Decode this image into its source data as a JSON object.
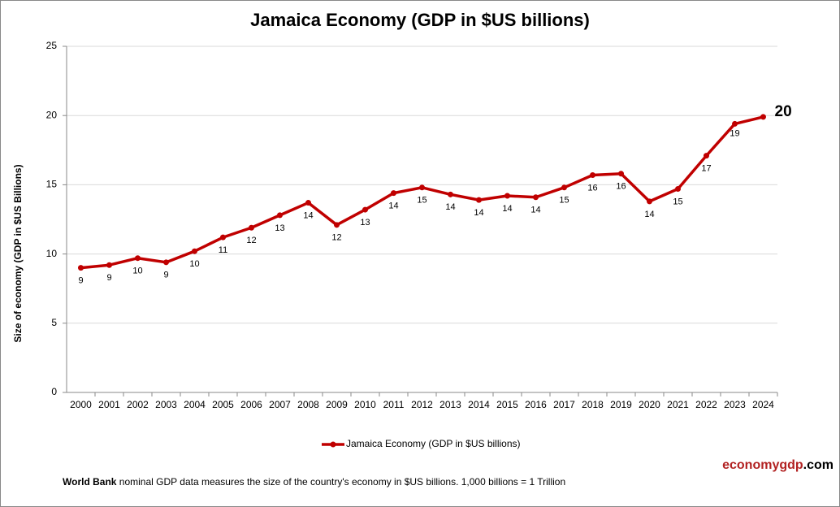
{
  "chart_data": {
    "type": "line",
    "title": "Jamaica Economy (GDP in $US billions)",
    "y_label": "Size of economy (GDP in $US Billions)",
    "categories": [
      "2000",
      "2001",
      "2002",
      "2003",
      "2004",
      "2005",
      "2006",
      "2007",
      "2008",
      "2009",
      "2010",
      "2011",
      "2012",
      "2013",
      "2014",
      "2015",
      "2016",
      "2017",
      "2018",
      "2019",
      "2020",
      "2021",
      "2022",
      "2023",
      "2024"
    ],
    "series": [
      {
        "name": "Jamaica Economy (GDP in $US billions)",
        "color": "#c00000",
        "values": [
          9.0,
          9.2,
          9.7,
          9.4,
          10.2,
          11.2,
          11.9,
          12.8,
          13.7,
          12.1,
          13.2,
          14.4,
          14.8,
          14.3,
          13.9,
          14.2,
          14.1,
          14.8,
          15.7,
          15.8,
          13.8,
          14.7,
          17.1,
          19.4,
          19.9
        ],
        "value_labels": [
          "9",
          "9",
          "10",
          "9",
          "10",
          "11",
          "12",
          "13",
          "14",
          "12",
          "13",
          "14",
          "15",
          "14",
          "14",
          "14",
          "14",
          "15",
          "16",
          "16",
          "14",
          "15",
          "17",
          "19",
          "20"
        ]
      }
    ],
    "ylim": [
      0,
      25
    ],
    "yticks": [
      0,
      5,
      10,
      15,
      20,
      25
    ],
    "grid": true,
    "legend": "bottom",
    "brand": [
      "economygdp",
      ".com"
    ],
    "footnote": {
      "bold": "World Bank",
      "text": "nominal GDP data  measures the size of the country's economy in $US billions. 1,000 billions = 1 Trillion"
    }
  }
}
